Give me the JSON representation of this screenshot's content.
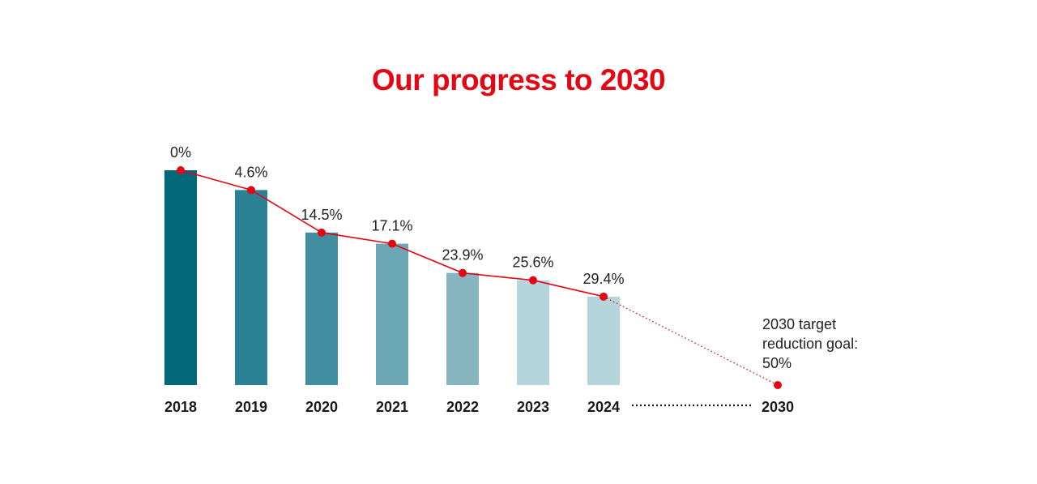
{
  "chart_data": {
    "type": "bar",
    "title": "Our progress to 2030",
    "categories": [
      "2018",
      "2019",
      "2020",
      "2021",
      "2022",
      "2023",
      "2024"
    ],
    "values": [
      0,
      4.6,
      14.5,
      17.1,
      23.9,
      25.6,
      29.4
    ],
    "value_labels": [
      "0%",
      "4.6%",
      "14.5%",
      "17.1%",
      "23.9%",
      "25.6%",
      "29.4%"
    ],
    "bar_colors": [
      "#006879",
      "#2b8294",
      "#428ea1",
      "#6aa6b3",
      "#86b5c0",
      "#b5d5dc",
      "#b5d5dc"
    ],
    "line_color": "#e30613",
    "title_color": "#e30613",
    "target": {
      "category": "2030",
      "value": 50,
      "label_lines": [
        "2030 target",
        "reduction goal:",
        "50%"
      ]
    },
    "xlabel": "",
    "ylabel": "",
    "grid": false,
    "legend": "none"
  }
}
